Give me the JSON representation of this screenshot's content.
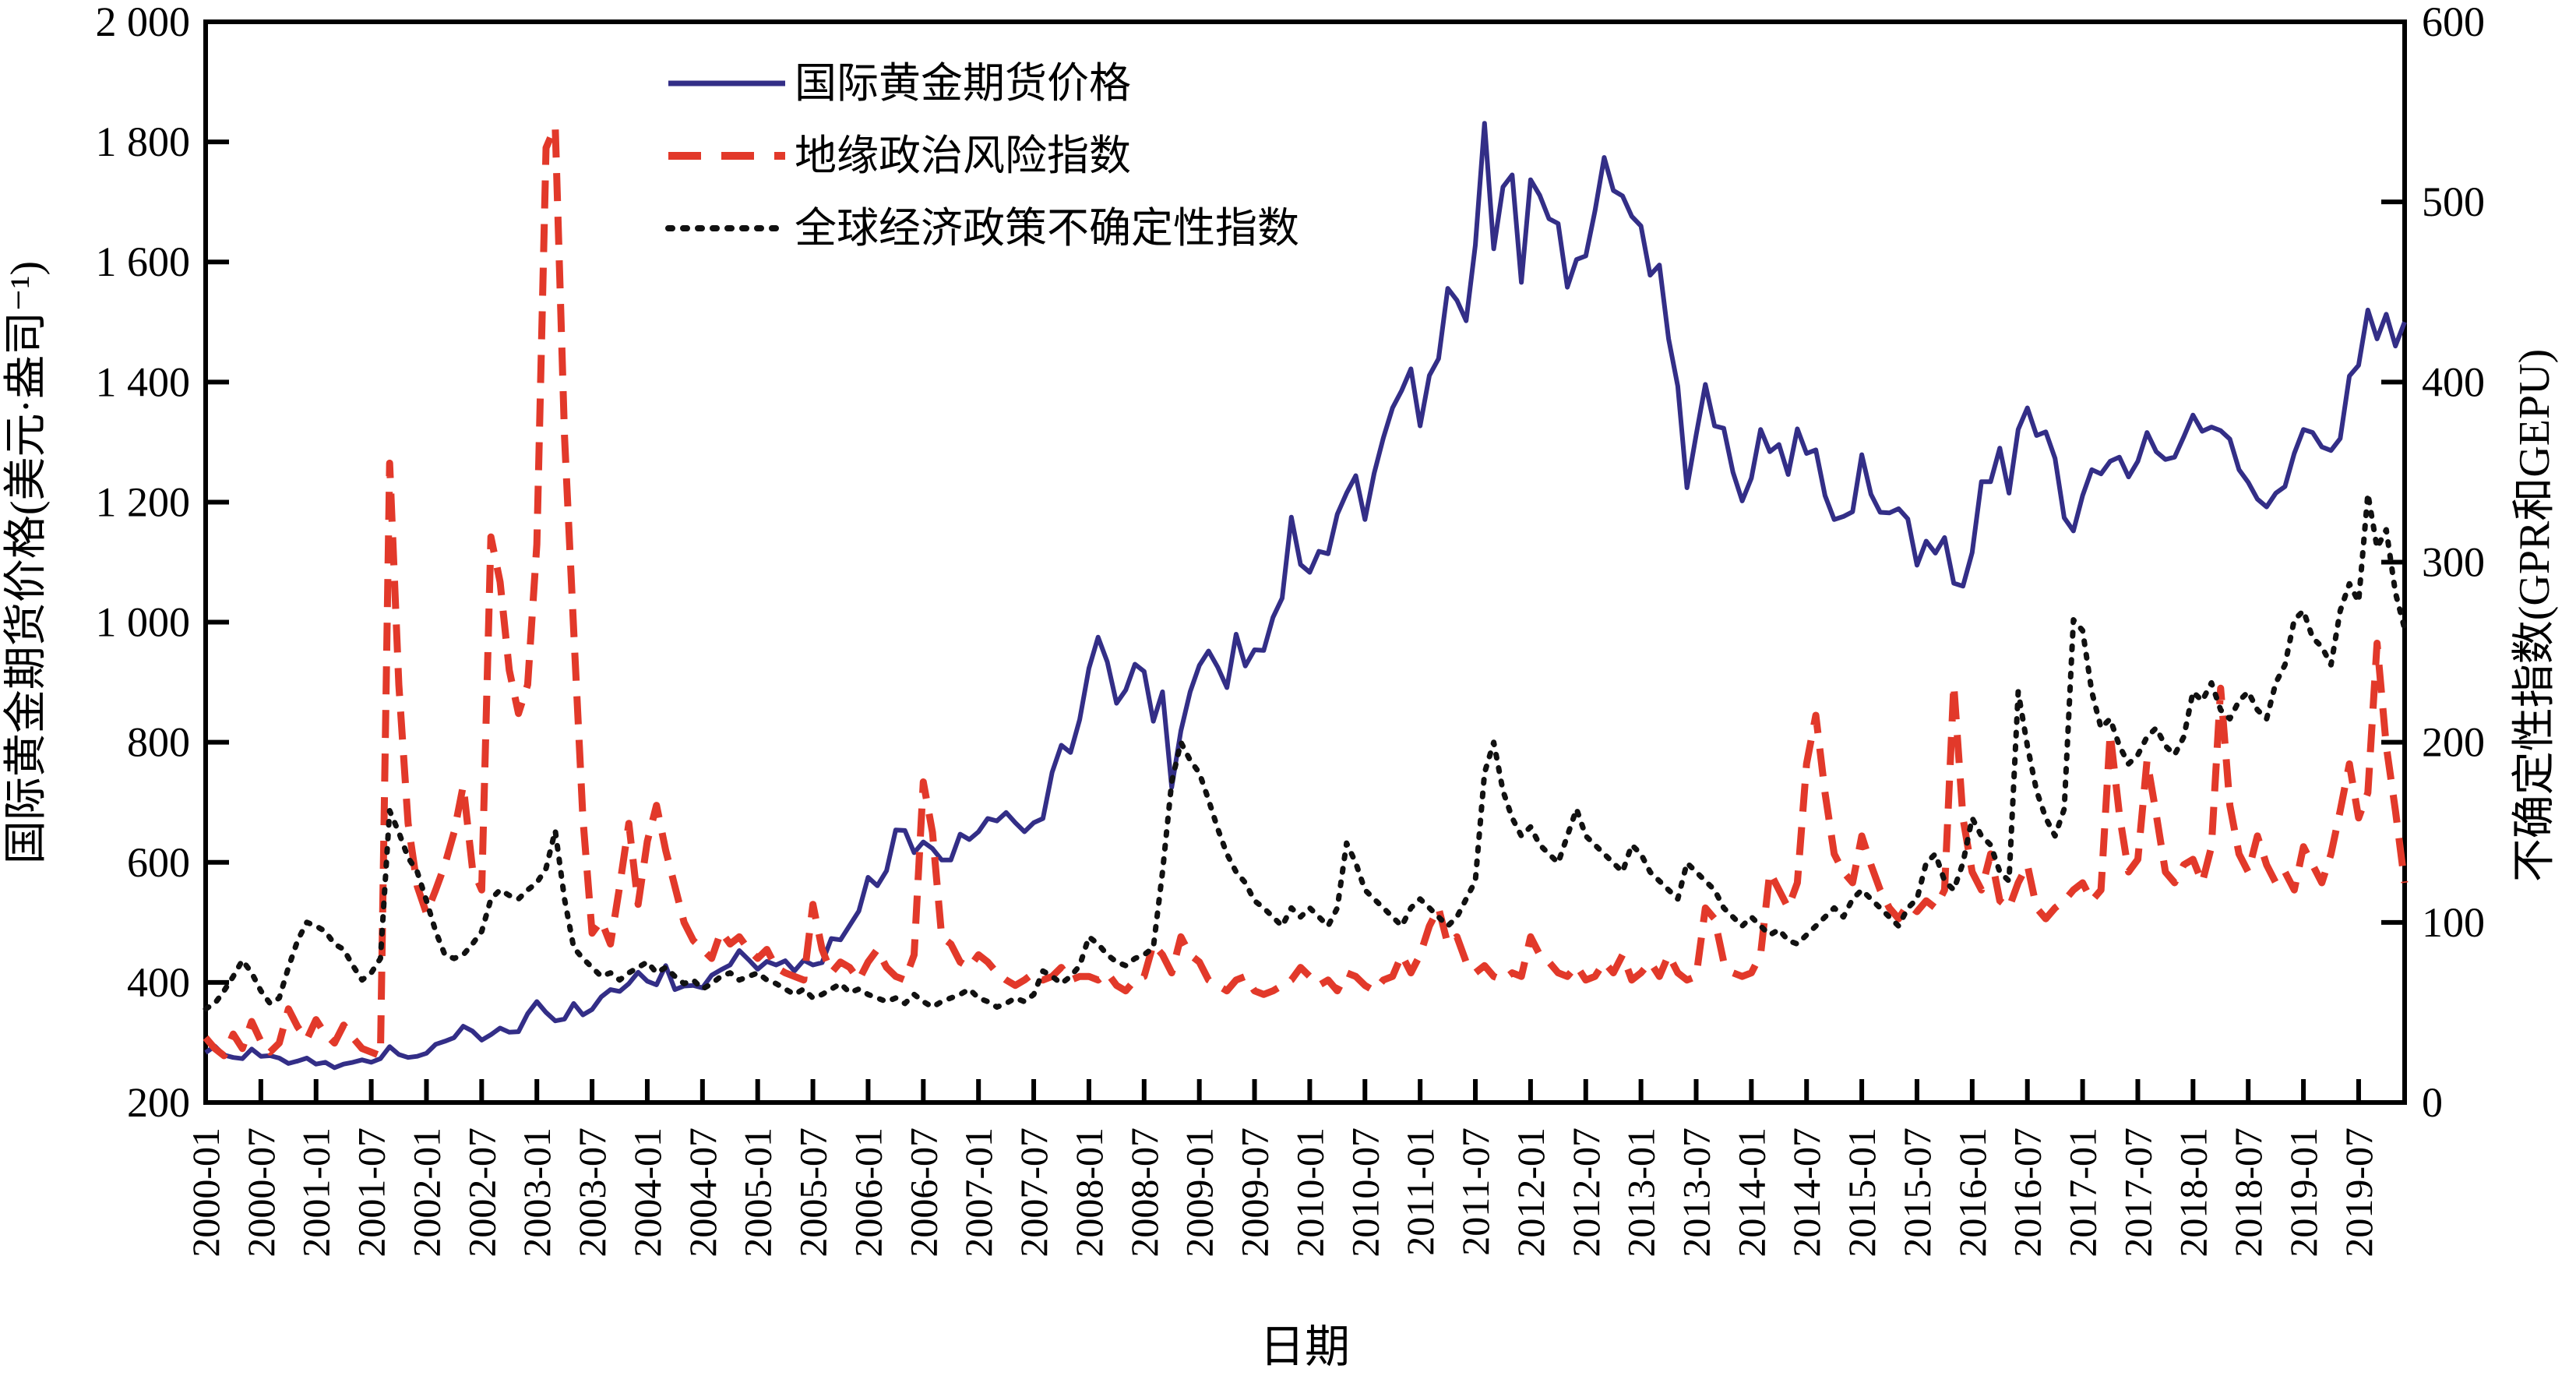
{
  "figure": {
    "background": "#ffffff",
    "frame_color": "#000000"
  },
  "chart_data": {
    "type": "line",
    "title": "",
    "xlabel": "日期",
    "ylabel_left": "国际黄金期货价格(美元·盎司⁻¹)",
    "ylabel_right": "不确定性指数(GPR和GEPU)",
    "ylim_left": [
      200,
      2000
    ],
    "ytick_step_left": 200,
    "ylim_right": [
      0,
      600
    ],
    "ytick_step_right": 100,
    "xtick_every_months": 6,
    "grid": false,
    "legend_position": "top-center-inside",
    "x": [
      "2000-01",
      "2000-02",
      "2000-03",
      "2000-04",
      "2000-05",
      "2000-06",
      "2000-07",
      "2000-08",
      "2000-09",
      "2000-10",
      "2000-11",
      "2000-12",
      "2001-01",
      "2001-02",
      "2001-03",
      "2001-04",
      "2001-05",
      "2001-06",
      "2001-07",
      "2001-08",
      "2001-09",
      "2001-10",
      "2001-11",
      "2001-12",
      "2002-01",
      "2002-02",
      "2002-03",
      "2002-04",
      "2002-05",
      "2002-06",
      "2002-07",
      "2002-08",
      "2002-09",
      "2002-10",
      "2002-11",
      "2002-12",
      "2003-01",
      "2003-02",
      "2003-03",
      "2003-04",
      "2003-05",
      "2003-06",
      "2003-07",
      "2003-08",
      "2003-09",
      "2003-10",
      "2003-11",
      "2003-12",
      "2004-01",
      "2004-02",
      "2004-03",
      "2004-04",
      "2004-05",
      "2004-06",
      "2004-07",
      "2004-08",
      "2004-09",
      "2004-10",
      "2004-11",
      "2004-12",
      "2005-01",
      "2005-02",
      "2005-03",
      "2005-04",
      "2005-05",
      "2005-06",
      "2005-07",
      "2005-08",
      "2005-09",
      "2005-10",
      "2005-11",
      "2005-12",
      "2006-01",
      "2006-02",
      "2006-03",
      "2006-04",
      "2006-05",
      "2006-06",
      "2006-07",
      "2006-08",
      "2006-09",
      "2006-10",
      "2006-11",
      "2006-12",
      "2007-01",
      "2007-02",
      "2007-03",
      "2007-04",
      "2007-05",
      "2007-06",
      "2007-07",
      "2007-08",
      "2007-09",
      "2007-10",
      "2007-11",
      "2007-12",
      "2008-01",
      "2008-02",
      "2008-03",
      "2008-04",
      "2008-05",
      "2008-06",
      "2008-07",
      "2008-08",
      "2008-09",
      "2008-10",
      "2008-11",
      "2008-12",
      "2009-01",
      "2009-02",
      "2009-03",
      "2009-04",
      "2009-05",
      "2009-06",
      "2009-07",
      "2009-08",
      "2009-09",
      "2009-10",
      "2009-11",
      "2009-12",
      "2010-01",
      "2010-02",
      "2010-03",
      "2010-04",
      "2010-05",
      "2010-06",
      "2010-07",
      "2010-08",
      "2010-09",
      "2010-10",
      "2010-11",
      "2010-12",
      "2011-01",
      "2011-02",
      "2011-03",
      "2011-04",
      "2011-05",
      "2011-06",
      "2011-07",
      "2011-08",
      "2011-09",
      "2011-10",
      "2011-11",
      "2011-12",
      "2012-01",
      "2012-02",
      "2012-03",
      "2012-04",
      "2012-05",
      "2012-06",
      "2012-07",
      "2012-08",
      "2012-09",
      "2012-10",
      "2012-11",
      "2012-12",
      "2013-01",
      "2013-02",
      "2013-03",
      "2013-04",
      "2013-05",
      "2013-06",
      "2013-07",
      "2013-08",
      "2013-09",
      "2013-10",
      "2013-11",
      "2013-12",
      "2014-01",
      "2014-02",
      "2014-03",
      "2014-04",
      "2014-05",
      "2014-06",
      "2014-07",
      "2014-08",
      "2014-09",
      "2014-10",
      "2014-11",
      "2014-12",
      "2015-01",
      "2015-02",
      "2015-03",
      "2015-04",
      "2015-05",
      "2015-06",
      "2015-07",
      "2015-08",
      "2015-09",
      "2015-10",
      "2015-11",
      "2015-12",
      "2016-01",
      "2016-02",
      "2016-03",
      "2016-04",
      "2016-05",
      "2016-06",
      "2016-07",
      "2016-08",
      "2016-09",
      "2016-10",
      "2016-11",
      "2016-12",
      "2017-01",
      "2017-02",
      "2017-03",
      "2017-04",
      "2017-05",
      "2017-06",
      "2017-07",
      "2017-08",
      "2017-09",
      "2017-10",
      "2017-11",
      "2017-12",
      "2018-01",
      "2018-02",
      "2018-03",
      "2018-04",
      "2018-05",
      "2018-06",
      "2018-07",
      "2018-08",
      "2018-09",
      "2018-10",
      "2018-11",
      "2018-12",
      "2019-01",
      "2019-02",
      "2019-03",
      "2019-04",
      "2019-05",
      "2019-06",
      "2019-07",
      "2019-08",
      "2019-09",
      "2019-10",
      "2019-11",
      "2019-12"
    ],
    "series": [
      {
        "name": "国际黄金期货价格",
        "axis": "left",
        "color": "#332e87",
        "style": "solid",
        "values": [
          283,
          294,
          279,
          275,
          273,
          289,
          277,
          278,
          274,
          265,
          269,
          274,
          264,
          267,
          258,
          264,
          267,
          271,
          267,
          273,
          293,
          280,
          275,
          277,
          282,
          297,
          302,
          308,
          327,
          319,
          304,
          313,
          324,
          317,
          318,
          348,
          368,
          350,
          336,
          339,
          365,
          346,
          355,
          376,
          388,
          385,
          398,
          417,
          402,
          396,
          428,
          388,
          394,
          395,
          391,
          412,
          421,
          429,
          453,
          438,
          422,
          435,
          429,
          436,
          419,
          437,
          429,
          433,
          473,
          471,
          495,
          519,
          575,
          561,
          586,
          654,
          653,
          616,
          634,
          623,
          604,
          604,
          647,
          638,
          651,
          673,
          669,
          683,
          666,
          651,
          666,
          673,
          750,
          795,
          783,
          838,
          923,
          975,
          934,
          865,
          887,
          930,
          918,
          835,
          884,
          725,
          819,
          884,
          928,
          952,
          925,
          891,
          980,
          927,
          954,
          953,
          1008,
          1040,
          1175,
          1096,
          1083,
          1118,
          1114,
          1180,
          1215,
          1244,
          1171,
          1248,
          1307,
          1357,
          1386,
          1422,
          1327,
          1411,
          1439,
          1556,
          1536,
          1502,
          1628,
          1831,
          1622,
          1725,
          1745,
          1566,
          1737,
          1711,
          1672,
          1664,
          1558,
          1604,
          1610,
          1685,
          1774,
          1719,
          1710,
          1676,
          1660,
          1578,
          1595,
          1472,
          1393,
          1224,
          1312,
          1396,
          1327,
          1323,
          1250,
          1202,
          1240,
          1321,
          1284,
          1296,
          1246,
          1322,
          1281,
          1287,
          1211,
          1171,
          1176,
          1184,
          1279,
          1213,
          1183,
          1182,
          1189,
          1172,
          1095,
          1135,
          1115,
          1141,
          1065,
          1060,
          1116,
          1234,
          1234,
          1290,
          1215,
          1321,
          1357,
          1311,
          1317,
          1273,
          1174,
          1152,
          1211,
          1254,
          1247,
          1268,
          1275,
          1242,
          1268,
          1316,
          1284,
          1271,
          1275,
          1309,
          1345,
          1318,
          1325,
          1319,
          1305,
          1254,
          1233,
          1205,
          1192,
          1215,
          1226,
          1281,
          1321,
          1316,
          1292,
          1286,
          1306,
          1410,
          1428,
          1520,
          1472,
          1513,
          1460,
          1500
        ]
      },
      {
        "name": "地缘政治风险指数",
        "axis": "right",
        "color": "#e2392a",
        "style": "dashed",
        "values": [
          36,
          30,
          26,
          38,
          30,
          45,
          34,
          28,
          33,
          52,
          42,
          35,
          46,
          38,
          33,
          43,
          36,
          30,
          28,
          26,
          355,
          232,
          155,
          120,
          105,
          118,
          132,
          150,
          176,
          130,
          118,
          314,
          289,
          240,
          216,
          232,
          310,
          530,
          542,
          370,
          262,
          158,
          94,
          101,
          88,
          120,
          155,
          110,
          145,
          165,
          140,
          120,
          100,
          90,
          85,
          80,
          95,
          88,
          92,
          85,
          80,
          85,
          75,
          72,
          70,
          68,
          110,
          85,
          72,
          78,
          75,
          68,
          78,
          85,
          75,
          70,
          68,
          82,
          178,
          150,
          92,
          88,
          78,
          75,
          82,
          78,
          72,
          68,
          65,
          68,
          72,
          68,
          70,
          75,
          68,
          70,
          70,
          68,
          72,
          65,
          62,
          68,
          70,
          88,
          82,
          72,
          92,
          82,
          78,
          68,
          65,
          62,
          68,
          70,
          62,
          60,
          62,
          65,
          68,
          75,
          70,
          65,
          68,
          62,
          72,
          70,
          65,
          62,
          68,
          70,
          82,
          72,
          82,
          98,
          108,
          88,
          92,
          78,
          72,
          76,
          70,
          68,
          72,
          70,
          92,
          82,
          78,
          72,
          70,
          76,
          68,
          70,
          78,
          72,
          82,
          68,
          72,
          78,
          70,
          82,
          72,
          68,
          70,
          108,
          102,
          78,
          72,
          70,
          72,
          82,
          128,
          118,
          108,
          122,
          188,
          215,
          172,
          138,
          128,
          122,
          148,
          132,
          118,
          108,
          102,
          110,
          106,
          112,
          108,
          118,
          232,
          158,
          128,
          118,
          138,
          112,
          108,
          122,
          132,
          108,
          102,
          108,
          112,
          118,
          122,
          112,
          118,
          205,
          160,
          128,
          135,
          190,
          160,
          128,
          122,
          132,
          135,
          122,
          142,
          230,
          165,
          138,
          128,
          148,
          132,
          122,
          128,
          118,
          142,
          132,
          122,
          138,
          162,
          188,
          158,
          172,
          255,
          198,
          162,
          122
        ]
      },
      {
        "name": "全球经济政策不确定性指数",
        "axis": "right",
        "color": "#111111",
        "style": "dotted",
        "values": [
          52,
          55,
          62,
          70,
          79,
          72,
          62,
          55,
          58,
          75,
          90,
          100,
          98,
          95,
          88,
          85,
          76,
          68,
          72,
          80,
          162,
          150,
          136,
          128,
          112,
          95,
          82,
          80,
          82,
          88,
          95,
          113,
          118,
          115,
          113,
          118,
          122,
          130,
          151,
          113,
          86,
          80,
          75,
          70,
          72,
          68,
          72,
          75,
          78,
          72,
          75,
          70,
          66,
          68,
          63,
          66,
          70,
          72,
          68,
          70,
          72,
          68,
          66,
          63,
          60,
          63,
          58,
          60,
          63,
          66,
          61,
          63,
          60,
          58,
          56,
          58,
          55,
          60,
          56,
          53,
          56,
          58,
          60,
          63,
          58,
          56,
          53,
          55,
          58,
          56,
          60,
          73,
          70,
          66,
          70,
          76,
          92,
          88,
          82,
          78,
          76,
          80,
          82,
          86,
          128,
          178,
          200,
          190,
          183,
          168,
          152,
          138,
          128,
          122,
          112,
          108,
          103,
          98,
          108,
          103,
          108,
          103,
          98,
          108,
          144,
          133,
          118,
          113,
          108,
          103,
          98,
          108,
          113,
          108,
          103,
          98,
          103,
          113,
          123,
          183,
          200,
          173,
          158,
          148,
          153,
          143,
          138,
          133,
          148,
          163,
          148,
          143,
          138,
          133,
          128,
          143,
          138,
          128,
          123,
          118,
          113,
          133,
          128,
          123,
          118,
          108,
          103,
          98,
          103,
          98,
          93,
          96,
          90,
          88,
          93,
          98,
          103,
          108,
          103,
          113,
          118,
          113,
          108,
          103,
          98,
          108,
          113,
          133,
          138,
          123,
          118,
          133,
          158,
          148,
          143,
          128,
          123,
          228,
          198,
          173,
          158,
          148,
          163,
          268,
          262,
          228,
          208,
          213,
          198,
          188,
          193,
          203,
          208,
          198,
          193,
          203,
          228,
          223,
          233,
          218,
          213,
          223,
          228,
          218,
          213,
          233,
          243,
          268,
          273,
          258,
          253,
          243,
          273,
          288,
          278,
          338,
          308,
          318,
          283,
          263
        ]
      }
    ]
  }
}
